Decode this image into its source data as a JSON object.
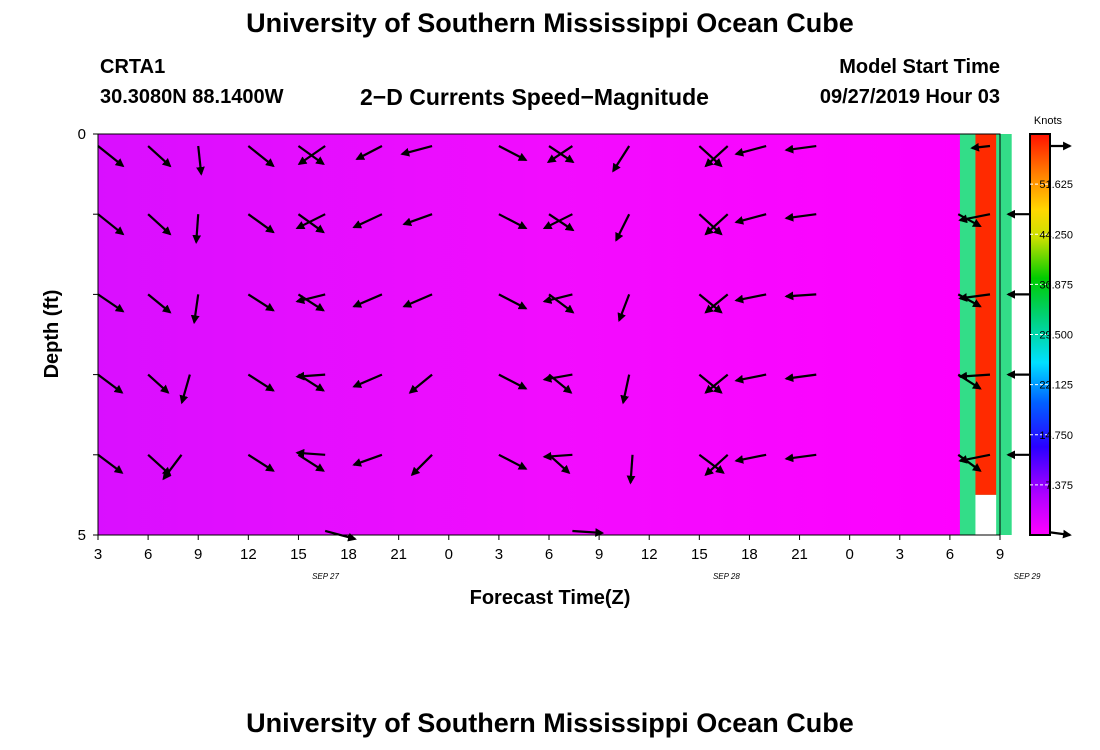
{
  "header": {
    "title": "University of Southern Mississippi Ocean Cube",
    "station": "CRTA1",
    "coords": "30.3080N 88.1400W",
    "plot_title": "2−D Currents Speed−Magnitude",
    "model_start_label": "Model Start Time",
    "model_start_value": "09/27/2019 Hour 03"
  },
  "footer": {
    "title": "University of Southern Mississippi Ocean Cube"
  },
  "chart_data": {
    "type": "heatmap",
    "title": "2−D Currents Speed−Magnitude",
    "xlabel": "Forecast Time(Z)",
    "ylabel": "Depth (ft)",
    "x_tick_labels": [
      "3",
      "6",
      "9",
      "12",
      "15",
      "18",
      "21",
      "0",
      "3",
      "6",
      "9",
      "12",
      "15",
      "18",
      "21",
      "0",
      "3",
      "6",
      "9"
    ],
    "date_labels": [
      {
        "label": "SEP 27",
        "tick_index": 5
      },
      {
        "label": "SEP 28",
        "tick_index": 13
      },
      {
        "label": "SEP 29",
        "tick_index": 19
      }
    ],
    "y_ticks": [
      0,
      1,
      2,
      3,
      4,
      5
    ],
    "y_tick_labels": [
      "0",
      "",
      "",
      "",
      "",
      "5"
    ],
    "ylim": [
      0,
      5
    ],
    "colorbar": {
      "unit": "Knots",
      "labels": [
        "51.625",
        "44.250",
        "36.875",
        "29.500",
        "22.125",
        "14.750",
        "7.375"
      ],
      "range": [
        0,
        59
      ]
    },
    "field_note_color": "#ff00ff",
    "highlight_band": {
      "x_hours_start": 51.6,
      "x_hours_end": 54.7,
      "inner_speed_knots": 58,
      "outer_speed_knots": 27,
      "bottom_gap_depth": 4.5
    },
    "vectors": [
      {
        "t": 0.0,
        "z": 0.15,
        "dx": 25,
        "dy": 20
      },
      {
        "t": 3.0,
        "z": 0.15,
        "dx": 22,
        "dy": 20
      },
      {
        "t": 6.0,
        "z": 0.15,
        "dx": 3,
        "dy": 28
      },
      {
        "t": 9.0,
        "z": 0.15,
        "dx": 25,
        "dy": 20
      },
      {
        "t": 12.0,
        "z": 0.15,
        "dx": 25,
        "dy": 18
      },
      {
        "t": 13.6,
        "z": 0.15,
        "dx": -26,
        "dy": 18
      },
      {
        "t": 17.0,
        "z": 0.15,
        "dx": -25,
        "dy": 13
      },
      {
        "t": 20.0,
        "z": 0.15,
        "dx": -30,
        "dy": 8
      },
      {
        "t": 24.0,
        "z": 0.15,
        "dx": 27,
        "dy": 14
      },
      {
        "t": 27.0,
        "z": 0.15,
        "dx": 24,
        "dy": 16
      },
      {
        "t": 28.4,
        "z": 0.15,
        "dx": -24,
        "dy": 16
      },
      {
        "t": 31.8,
        "z": 0.15,
        "dx": -16,
        "dy": 25
      },
      {
        "t": 36.0,
        "z": 0.15,
        "dx": 22,
        "dy": 20
      },
      {
        "t": 37.7,
        "z": 0.15,
        "dx": -22,
        "dy": 20
      },
      {
        "t": 40.0,
        "z": 0.15,
        "dx": -30,
        "dy": 8
      },
      {
        "t": 43.0,
        "z": 0.15,
        "dx": -30,
        "dy": 4
      },
      {
        "t": 53.4,
        "z": 0.15,
        "dx": -18,
        "dy": 2
      },
      {
        "t": 56.4,
        "z": 0.15,
        "dx": 30,
        "dy": 0
      },
      {
        "t": 0.0,
        "z": 1.0,
        "dx": 25,
        "dy": 20
      },
      {
        "t": 3.0,
        "z": 1.0,
        "dx": 22,
        "dy": 20
      },
      {
        "t": 6.0,
        "z": 1.0,
        "dx": -2,
        "dy": 28
      },
      {
        "t": 9.0,
        "z": 1.0,
        "dx": 25,
        "dy": 18
      },
      {
        "t": 12.0,
        "z": 1.0,
        "dx": 25,
        "dy": 18
      },
      {
        "t": 13.6,
        "z": 1.0,
        "dx": -28,
        "dy": 14
      },
      {
        "t": 17.0,
        "z": 1.0,
        "dx": -28,
        "dy": 13
      },
      {
        "t": 20.0,
        "z": 1.0,
        "dx": -28,
        "dy": 10
      },
      {
        "t": 24.0,
        "z": 1.0,
        "dx": 27,
        "dy": 14
      },
      {
        "t": 27.0,
        "z": 1.0,
        "dx": 24,
        "dy": 16
      },
      {
        "t": 28.4,
        "z": 1.0,
        "dx": -28,
        "dy": 14
      },
      {
        "t": 31.8,
        "z": 1.0,
        "dx": -13,
        "dy": 26
      },
      {
        "t": 36.0,
        "z": 1.0,
        "dx": 22,
        "dy": 20
      },
      {
        "t": 37.7,
        "z": 1.0,
        "dx": -22,
        "dy": 20
      },
      {
        "t": 40.0,
        "z": 1.0,
        "dx": -30,
        "dy": 8
      },
      {
        "t": 43.0,
        "z": 1.0,
        "dx": -30,
        "dy": 4
      },
      {
        "t": 51.5,
        "z": 1.0,
        "dx": 22,
        "dy": 12
      },
      {
        "t": 53.4,
        "z": 1.0,
        "dx": -30,
        "dy": 6
      },
      {
        "t": 56.4,
        "z": 1.0,
        "dx": -32,
        "dy": 0
      },
      {
        "t": 0.0,
        "z": 2.0,
        "dx": 25,
        "dy": 17
      },
      {
        "t": 3.0,
        "z": 2.0,
        "dx": 22,
        "dy": 18
      },
      {
        "t": 6.0,
        "z": 2.0,
        "dx": -4,
        "dy": 28
      },
      {
        "t": 9.0,
        "z": 2.0,
        "dx": 25,
        "dy": 16
      },
      {
        "t": 12.0,
        "z": 2.0,
        "dx": 25,
        "dy": 16
      },
      {
        "t": 13.6,
        "z": 2.0,
        "dx": -28,
        "dy": 7
      },
      {
        "t": 17.0,
        "z": 2.0,
        "dx": -28,
        "dy": 12
      },
      {
        "t": 20.0,
        "z": 2.0,
        "dx": -28,
        "dy": 12
      },
      {
        "t": 24.0,
        "z": 2.0,
        "dx": 27,
        "dy": 14
      },
      {
        "t": 27.0,
        "z": 2.0,
        "dx": 24,
        "dy": 18
      },
      {
        "t": 28.4,
        "z": 2.0,
        "dx": -28,
        "dy": 7
      },
      {
        "t": 31.8,
        "z": 2.0,
        "dx": -10,
        "dy": 26
      },
      {
        "t": 36.0,
        "z": 2.0,
        "dx": 22,
        "dy": 18
      },
      {
        "t": 37.7,
        "z": 2.0,
        "dx": -22,
        "dy": 18
      },
      {
        "t": 40.0,
        "z": 2.0,
        "dx": -30,
        "dy": 6
      },
      {
        "t": 43.0,
        "z": 2.0,
        "dx": -30,
        "dy": 2
      },
      {
        "t": 51.5,
        "z": 2.0,
        "dx": 22,
        "dy": 12
      },
      {
        "t": 53.4,
        "z": 2.0,
        "dx": -30,
        "dy": 4
      },
      {
        "t": 56.4,
        "z": 2.0,
        "dx": -32,
        "dy": 0
      },
      {
        "t": 0.0,
        "z": 3.0,
        "dx": 24,
        "dy": 18
      },
      {
        "t": 3.0,
        "z": 3.0,
        "dx": 20,
        "dy": 18
      },
      {
        "t": 5.5,
        "z": 3.0,
        "dx": -8,
        "dy": 28
      },
      {
        "t": 9.0,
        "z": 3.0,
        "dx": 25,
        "dy": 16
      },
      {
        "t": 12.0,
        "z": 3.0,
        "dx": 25,
        "dy": 16
      },
      {
        "t": 13.6,
        "z": 3.0,
        "dx": -28,
        "dy": 2
      },
      {
        "t": 17.0,
        "z": 3.0,
        "dx": -28,
        "dy": 12
      },
      {
        "t": 20.0,
        "z": 3.0,
        "dx": -22,
        "dy": 18
      },
      {
        "t": 24.0,
        "z": 3.0,
        "dx": 27,
        "dy": 14
      },
      {
        "t": 27.0,
        "z": 3.0,
        "dx": 22,
        "dy": 18
      },
      {
        "t": 28.4,
        "z": 3.0,
        "dx": -28,
        "dy": 5
      },
      {
        "t": 31.8,
        "z": 3.0,
        "dx": -6,
        "dy": 28
      },
      {
        "t": 36.0,
        "z": 3.0,
        "dx": 22,
        "dy": 18
      },
      {
        "t": 37.7,
        "z": 3.0,
        "dx": -22,
        "dy": 18
      },
      {
        "t": 40.0,
        "z": 3.0,
        "dx": -30,
        "dy": 6
      },
      {
        "t": 43.0,
        "z": 3.0,
        "dx": -30,
        "dy": 4
      },
      {
        "t": 51.5,
        "z": 3.0,
        "dx": 22,
        "dy": 14
      },
      {
        "t": 53.4,
        "z": 3.0,
        "dx": -30,
        "dy": 2
      },
      {
        "t": 56.4,
        "z": 3.0,
        "dx": -32,
        "dy": 0
      },
      {
        "t": 0.0,
        "z": 4.0,
        "dx": 24,
        "dy": 18
      },
      {
        "t": 3.0,
        "z": 4.0,
        "dx": 22,
        "dy": 20
      },
      {
        "t": 5.0,
        "z": 4.0,
        "dx": -18,
        "dy": 24
      },
      {
        "t": 9.0,
        "z": 4.0,
        "dx": 25,
        "dy": 16
      },
      {
        "t": 12.0,
        "z": 4.0,
        "dx": 25,
        "dy": 16
      },
      {
        "t": 13.6,
        "z": 4.0,
        "dx": -28,
        "dy": -2
      },
      {
        "t": 17.0,
        "z": 4.0,
        "dx": -28,
        "dy": 10
      },
      {
        "t": 20.0,
        "z": 4.0,
        "dx": -20,
        "dy": 20
      },
      {
        "t": 24.0,
        "z": 4.0,
        "dx": 27,
        "dy": 14
      },
      {
        "t": 27.0,
        "z": 4.0,
        "dx": 20,
        "dy": 18
      },
      {
        "t": 28.4,
        "z": 4.0,
        "dx": -28,
        "dy": 2
      },
      {
        "t": 32.0,
        "z": 4.0,
        "dx": -2,
        "dy": 28
      },
      {
        "t": 36.0,
        "z": 4.0,
        "dx": 24,
        "dy": 18
      },
      {
        "t": 37.7,
        "z": 4.0,
        "dx": -22,
        "dy": 20
      },
      {
        "t": 40.0,
        "z": 4.0,
        "dx": -30,
        "dy": 6
      },
      {
        "t": 43.0,
        "z": 4.0,
        "dx": -30,
        "dy": 4
      },
      {
        "t": 51.5,
        "z": 4.0,
        "dx": 22,
        "dy": 16
      },
      {
        "t": 53.4,
        "z": 4.0,
        "dx": -30,
        "dy": 6
      },
      {
        "t": 56.4,
        "z": 4.0,
        "dx": -32,
        "dy": 0
      },
      {
        "t": 13.6,
        "z": 4.95,
        "dx": 30,
        "dy": 8
      },
      {
        "t": 28.4,
        "z": 4.95,
        "dx": 30,
        "dy": 2
      },
      {
        "t": 56.4,
        "z": 4.95,
        "dx": 30,
        "dy": 4
      }
    ]
  }
}
